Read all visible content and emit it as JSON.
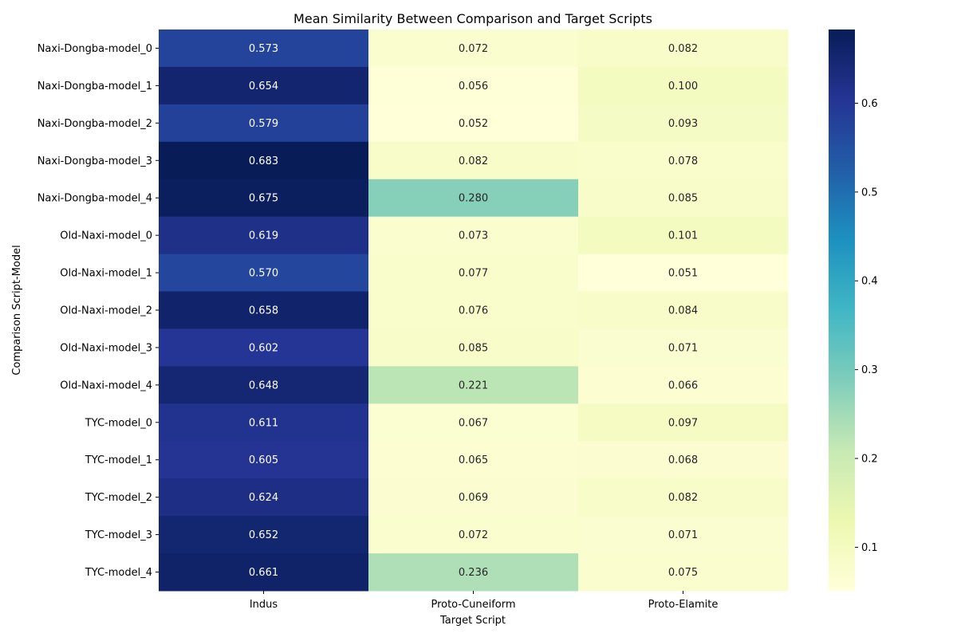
{
  "chart_data": {
    "type": "heatmap",
    "title": "Mean Similarity Between Comparison and Target Scripts",
    "xlabel": "Target Script",
    "ylabel": "Comparison Script-Model",
    "x_categories": [
      "Indus",
      "Proto-Cuneiform",
      "Proto-Elamite"
    ],
    "y_categories": [
      "Naxi-Dongba-model_0",
      "Naxi-Dongba-model_1",
      "Naxi-Dongba-model_2",
      "Naxi-Dongba-model_3",
      "Naxi-Dongba-model_4",
      "Old-Naxi-model_0",
      "Old-Naxi-model_1",
      "Old-Naxi-model_2",
      "Old-Naxi-model_3",
      "Old-Naxi-model_4",
      "TYC-model_0",
      "TYC-model_1",
      "TYC-model_2",
      "TYC-model_3",
      "TYC-model_4"
    ],
    "values": [
      [
        0.573,
        0.072,
        0.082
      ],
      [
        0.654,
        0.056,
        0.1
      ],
      [
        0.579,
        0.052,
        0.093
      ],
      [
        0.683,
        0.082,
        0.078
      ],
      [
        0.675,
        0.28,
        0.085
      ],
      [
        0.619,
        0.073,
        0.101
      ],
      [
        0.57,
        0.077,
        0.051
      ],
      [
        0.658,
        0.076,
        0.084
      ],
      [
        0.602,
        0.085,
        0.071
      ],
      [
        0.648,
        0.221,
        0.066
      ],
      [
        0.611,
        0.067,
        0.097
      ],
      [
        0.605,
        0.065,
        0.068
      ],
      [
        0.624,
        0.069,
        0.082
      ],
      [
        0.652,
        0.072,
        0.071
      ],
      [
        0.661,
        0.236,
        0.075
      ]
    ],
    "cell_labels": [
      [
        "0.573",
        "0.072",
        "0.082"
      ],
      [
        "0.654",
        "0.056",
        "0.100"
      ],
      [
        "0.579",
        "0.052",
        "0.093"
      ],
      [
        "0.683",
        "0.082",
        "0.078"
      ],
      [
        "0.675",
        "0.280",
        "0.085"
      ],
      [
        "0.619",
        "0.073",
        "0.101"
      ],
      [
        "0.570",
        "0.077",
        "0.051"
      ],
      [
        "0.658",
        "0.076",
        "0.084"
      ],
      [
        "0.602",
        "0.085",
        "0.071"
      ],
      [
        "0.648",
        "0.221",
        "0.066"
      ],
      [
        "0.611",
        "0.067",
        "0.097"
      ],
      [
        "0.605",
        "0.065",
        "0.068"
      ],
      [
        "0.624",
        "0.069",
        "0.082"
      ],
      [
        "0.652",
        "0.072",
        "0.071"
      ],
      [
        "0.661",
        "0.236",
        "0.075"
      ]
    ],
    "colormap": "YlGnBu",
    "colormap_stops": [
      "#ffffd9",
      "#edf8b1",
      "#c7e9b4",
      "#7fcdbb",
      "#41b6c4",
      "#1d91c0",
      "#225ea8",
      "#253494",
      "#081d58"
    ],
    "vmin": 0.051,
    "vmax": 0.683,
    "colorbar_ticks": [
      0.1,
      0.2,
      0.3,
      0.4,
      0.5,
      0.6
    ],
    "colorbar_tick_labels": [
      "0.1",
      "0.2",
      "0.3",
      "0.4",
      "0.5",
      "0.6"
    ],
    "grid": false,
    "legend": "colorbar-right"
  }
}
